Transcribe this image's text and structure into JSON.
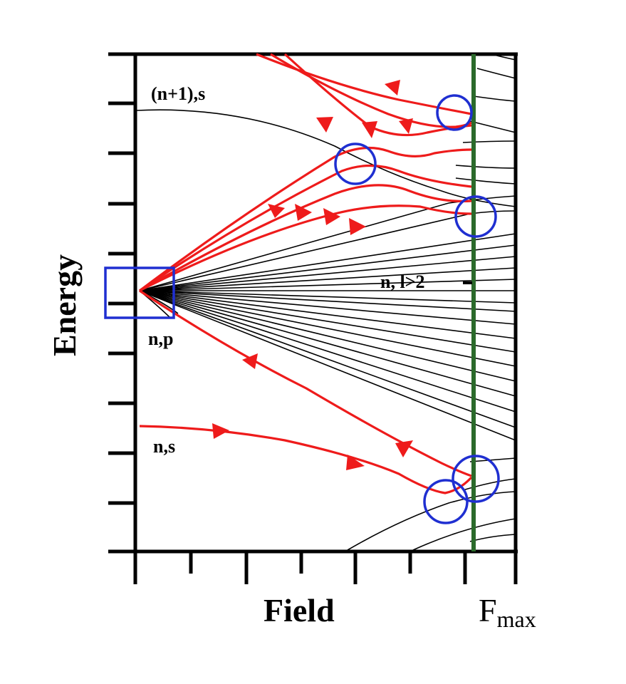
{
  "labels": {
    "upper_state": "(n+1),s",
    "middle_manifold": "n, l>2",
    "p_state": "n,p",
    "s_state": "n,s"
  },
  "axes": {
    "x_title": "Field",
    "y_title": "Energy",
    "fmax_main": "F",
    "fmax_sub": "max"
  },
  "colors": {
    "axis": "#000000",
    "levels": "#000000",
    "path": "#ee1b1b",
    "markers": "#1f2fd1",
    "fmax_line": "#2b6a2b"
  }
}
